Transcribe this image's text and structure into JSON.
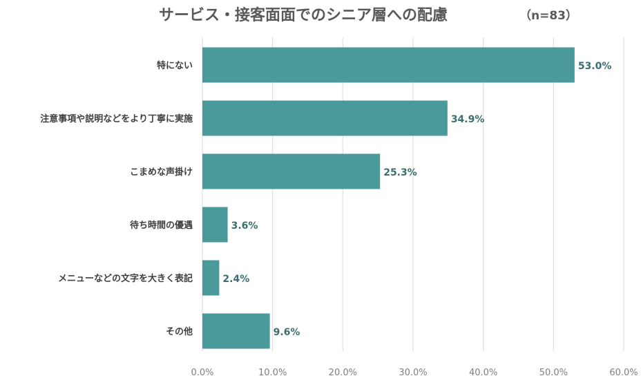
{
  "title": "サービス・接客面面でのシニア層への配慮",
  "sample_note": "（n=83）",
  "colors": {
    "bar": "#4a9a9c",
    "value_label": "#3d6e6e"
  },
  "chart_data": {
    "type": "bar",
    "orientation": "horizontal",
    "categories": [
      "特にない",
      "注意事項や説明などをより丁寧に実施",
      "こまめな声掛け",
      "待ち時間の優遇",
      "メニューなどの文字を大きく表記",
      "その他"
    ],
    "values": [
      53.0,
      34.9,
      25.3,
      3.6,
      2.4,
      9.6
    ],
    "value_labels": [
      "53.0%",
      "34.9%",
      "25.3%",
      "3.6%",
      "2.4%",
      "9.6%"
    ],
    "xlim": [
      0,
      60
    ],
    "xticks": [
      0,
      10,
      20,
      30,
      40,
      50,
      60
    ],
    "xtick_labels": [
      "0.0%",
      "10.0%",
      "20.0%",
      "30.0%",
      "40.0%",
      "50.0%",
      "60.0%"
    ],
    "grid": true
  }
}
